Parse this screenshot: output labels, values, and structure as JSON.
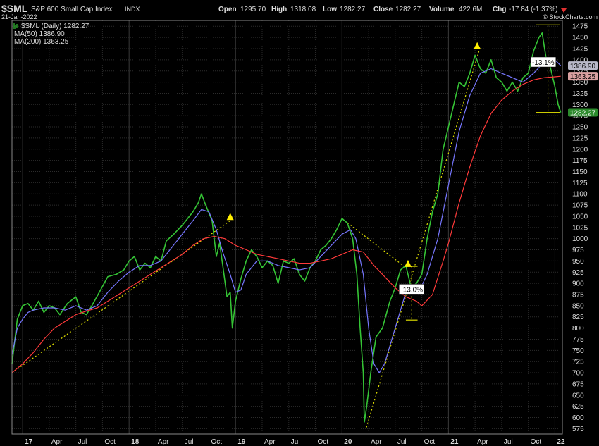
{
  "header": {
    "symbol": "$SML",
    "name": "S&P 600 Small Cap Index",
    "exchange": "INDX",
    "date": "21-Jan-2022",
    "open_label": "Open",
    "open": "1295.70",
    "high_label": "High",
    "high": "1318.08",
    "low_label": "Low",
    "low": "1282.27",
    "close_label": "Close",
    "close": "1282.27",
    "volume_label": "Volume",
    "volume": "422.6M",
    "chg_label": "Chg",
    "chg": "-17.84 (-1.37%)",
    "watermark": "© StockCharts.com"
  },
  "legend": [
    {
      "label": "$SML (Daily) 1282.27",
      "color": "#35c435"
    },
    {
      "label": "MA(50) 1386.90",
      "color": "#7777ff"
    },
    {
      "label": "MA(200) 1363.25",
      "color": "#ff3a3a"
    }
  ],
  "price_tags": [
    {
      "label": "1386.90",
      "value": 1386.9,
      "bg": "#b8b8c8",
      "fg": "#000000"
    },
    {
      "label": "1363.25",
      "value": 1363.25,
      "bg": "#d8a0a0",
      "fg": "#000000"
    },
    {
      "label": "1282.27",
      "value": 1282.27,
      "bg": "#2c8a2c",
      "fg": "#ffffff"
    }
  ],
  "annotations": [
    {
      "label": "-13.0%",
      "x": 2020.655,
      "y": 887
    },
    {
      "label": "-13.1%",
      "x": 2021.89,
      "y": 1395
    }
  ],
  "chart_data": {
    "type": "line",
    "title": "S&P 600 Small Cap Index",
    "xlim": [
      2016.9,
      2022.07
    ],
    "ylim": [
      563,
      1488
    ],
    "y_ticks": [
      575,
      600,
      625,
      650,
      675,
      700,
      725,
      750,
      775,
      800,
      825,
      850,
      875,
      900,
      925,
      950,
      975,
      1000,
      1025,
      1050,
      1075,
      1100,
      1125,
      1150,
      1175,
      1200,
      1225,
      1250,
      1275,
      1300,
      1325,
      1350,
      1375,
      1400,
      1425,
      1450,
      1475
    ],
    "x_ticks": [
      {
        "label": "17",
        "x": 2017.0,
        "year": true
      },
      {
        "label": "Apr",
        "x": 2017.25
      },
      {
        "label": "Jul",
        "x": 2017.5
      },
      {
        "label": "Oct",
        "x": 2017.75
      },
      {
        "label": "18",
        "x": 2018.0,
        "year": true
      },
      {
        "label": "Apr",
        "x": 2018.25
      },
      {
        "label": "Jul",
        "x": 2018.5
      },
      {
        "label": "Oct",
        "x": 2018.75
      },
      {
        "label": "19",
        "x": 2019.0,
        "year": true
      },
      {
        "label": "Apr",
        "x": 2019.25
      },
      {
        "label": "Jul",
        "x": 2019.5
      },
      {
        "label": "Oct",
        "x": 2019.75
      },
      {
        "label": "20",
        "x": 2020.0,
        "year": true
      },
      {
        "label": "Apr",
        "x": 2020.25
      },
      {
        "label": "Jul",
        "x": 2020.5
      },
      {
        "label": "Oct",
        "x": 2020.75
      },
      {
        "label": "21",
        "x": 2021.0,
        "year": true
      },
      {
        "label": "Apr",
        "x": 2021.25
      },
      {
        "label": "Jul",
        "x": 2021.5
      },
      {
        "label": "Oct",
        "x": 2021.75
      },
      {
        "label": "22",
        "x": 2022.0,
        "year": true
      }
    ],
    "grid": true,
    "legend_position": "top-left",
    "series": [
      {
        "name": "$SML (Daily)",
        "color": "#35c435",
        "width": 1.6,
        "points": [
          [
            2016.9,
            720
          ],
          [
            2016.95,
            820
          ],
          [
            2017.0,
            850
          ],
          [
            2017.05,
            855
          ],
          [
            2017.1,
            840
          ],
          [
            2017.15,
            860
          ],
          [
            2017.2,
            835
          ],
          [
            2017.25,
            850
          ],
          [
            2017.3,
            845
          ],
          [
            2017.35,
            830
          ],
          [
            2017.42,
            855
          ],
          [
            2017.5,
            870
          ],
          [
            2017.55,
            835
          ],
          [
            2017.6,
            830
          ],
          [
            2017.65,
            850
          ],
          [
            2017.72,
            880
          ],
          [
            2017.8,
            915
          ],
          [
            2017.88,
            920
          ],
          [
            2017.95,
            930
          ],
          [
            2018.0,
            950
          ],
          [
            2018.05,
            960
          ],
          [
            2018.1,
            930
          ],
          [
            2018.15,
            945
          ],
          [
            2018.2,
            935
          ],
          [
            2018.25,
            960
          ],
          [
            2018.3,
            950
          ],
          [
            2018.35,
            995
          ],
          [
            2018.42,
            1010
          ],
          [
            2018.5,
            1030
          ],
          [
            2018.55,
            1045
          ],
          [
            2018.6,
            1060
          ],
          [
            2018.65,
            1080
          ],
          [
            2018.68,
            1100
          ],
          [
            2018.72,
            1075
          ],
          [
            2018.78,
            1040
          ],
          [
            2018.82,
            960
          ],
          [
            2018.85,
            990
          ],
          [
            2018.88,
            940
          ],
          [
            2018.92,
            870
          ],
          [
            2018.95,
            880
          ],
          [
            2018.97,
            800
          ],
          [
            2019.0,
            860
          ],
          [
            2019.05,
            910
          ],
          [
            2019.1,
            950
          ],
          [
            2019.15,
            975
          ],
          [
            2019.2,
            960
          ],
          [
            2019.25,
            935
          ],
          [
            2019.3,
            950
          ],
          [
            2019.35,
            940
          ],
          [
            2019.4,
            900
          ],
          [
            2019.45,
            950
          ],
          [
            2019.5,
            945
          ],
          [
            2019.55,
            955
          ],
          [
            2019.6,
            920
          ],
          [
            2019.65,
            905
          ],
          [
            2019.7,
            935
          ],
          [
            2019.75,
            950
          ],
          [
            2019.8,
            975
          ],
          [
            2019.85,
            985
          ],
          [
            2019.9,
            1000
          ],
          [
            2019.95,
            1020
          ],
          [
            2020.0,
            1045
          ],
          [
            2020.05,
            1035
          ],
          [
            2020.1,
            1000
          ],
          [
            2020.14,
            920
          ],
          [
            2020.17,
            800
          ],
          [
            2020.2,
            700
          ],
          [
            2020.21,
            590
          ],
          [
            2020.23,
            620
          ],
          [
            2020.27,
            700
          ],
          [
            2020.32,
            780
          ],
          [
            2020.38,
            800
          ],
          [
            2020.45,
            860
          ],
          [
            2020.5,
            890
          ],
          [
            2020.55,
            930
          ],
          [
            2020.6,
            940
          ],
          [
            2020.65,
            890
          ],
          [
            2020.7,
            900
          ],
          [
            2020.75,
            920
          ],
          [
            2020.8,
            1000
          ],
          [
            2020.85,
            1060
          ],
          [
            2020.9,
            1100
          ],
          [
            2020.95,
            1200
          ],
          [
            2021.0,
            1250
          ],
          [
            2021.05,
            1300
          ],
          [
            2021.1,
            1350
          ],
          [
            2021.15,
            1340
          ],
          [
            2021.2,
            1370
          ],
          [
            2021.25,
            1410
          ],
          [
            2021.3,
            1380
          ],
          [
            2021.35,
            1370
          ],
          [
            2021.4,
            1400
          ],
          [
            2021.45,
            1360
          ],
          [
            2021.5,
            1350
          ],
          [
            2021.55,
            1330
          ],
          [
            2021.6,
            1350
          ],
          [
            2021.65,
            1330
          ],
          [
            2021.7,
            1360
          ],
          [
            2021.75,
            1370
          ],
          [
            2021.8,
            1420
          ],
          [
            2021.85,
            1450
          ],
          [
            2021.88,
            1460
          ],
          [
            2021.92,
            1400
          ],
          [
            2021.95,
            1390
          ],
          [
            2022.0,
            1340
          ],
          [
            2022.03,
            1300
          ],
          [
            2022.055,
            1282.27
          ]
        ]
      },
      {
        "name": "MA(50)",
        "color": "#7777ff",
        "width": 1.2,
        "points": [
          [
            2016.9,
            740
          ],
          [
            2016.95,
            800
          ],
          [
            2017.0,
            820
          ],
          [
            2017.05,
            835
          ],
          [
            2017.1,
            840
          ],
          [
            2017.2,
            845
          ],
          [
            2017.3,
            845
          ],
          [
            2017.4,
            840
          ],
          [
            2017.5,
            850
          ],
          [
            2017.6,
            840
          ],
          [
            2017.7,
            850
          ],
          [
            2017.8,
            880
          ],
          [
            2017.9,
            905
          ],
          [
            2018.0,
            925
          ],
          [
            2018.1,
            940
          ],
          [
            2018.2,
            940
          ],
          [
            2018.3,
            950
          ],
          [
            2018.4,
            980
          ],
          [
            2018.5,
            1010
          ],
          [
            2018.6,
            1040
          ],
          [
            2018.68,
            1065
          ],
          [
            2018.75,
            1060
          ],
          [
            2018.82,
            1020
          ],
          [
            2018.88,
            970
          ],
          [
            2018.95,
            920
          ],
          [
            2019.0,
            880
          ],
          [
            2019.05,
            885
          ],
          [
            2019.1,
            920
          ],
          [
            2019.2,
            950
          ],
          [
            2019.3,
            950
          ],
          [
            2019.4,
            940
          ],
          [
            2019.5,
            935
          ],
          [
            2019.6,
            930
          ],
          [
            2019.7,
            935
          ],
          [
            2019.8,
            960
          ],
          [
            2019.9,
            985
          ],
          [
            2020.0,
            1010
          ],
          [
            2020.08,
            1020
          ],
          [
            2020.13,
            1000
          ],
          [
            2020.2,
            920
          ],
          [
            2020.25,
            800
          ],
          [
            2020.3,
            720
          ],
          [
            2020.35,
            700
          ],
          [
            2020.4,
            720
          ],
          [
            2020.5,
            800
          ],
          [
            2020.6,
            880
          ],
          [
            2020.7,
            890
          ],
          [
            2020.75,
            895
          ],
          [
            2020.8,
            920
          ],
          [
            2020.9,
            1000
          ],
          [
            2021.0,
            1120
          ],
          [
            2021.1,
            1240
          ],
          [
            2021.2,
            1320
          ],
          [
            2021.3,
            1370
          ],
          [
            2021.4,
            1380
          ],
          [
            2021.5,
            1370
          ],
          [
            2021.6,
            1360
          ],
          [
            2021.7,
            1350
          ],
          [
            2021.8,
            1370
          ],
          [
            2021.9,
            1395
          ],
          [
            2022.0,
            1400
          ],
          [
            2022.055,
            1386.9
          ]
        ]
      },
      {
        "name": "MA(200)",
        "color": "#ff3a3a",
        "width": 1.2,
        "points": [
          [
            2016.9,
            700
          ],
          [
            2017.0,
            720
          ],
          [
            2017.1,
            745
          ],
          [
            2017.2,
            775
          ],
          [
            2017.3,
            800
          ],
          [
            2017.4,
            815
          ],
          [
            2017.5,
            830
          ],
          [
            2017.6,
            838
          ],
          [
            2017.7,
            845
          ],
          [
            2017.8,
            860
          ],
          [
            2017.9,
            875
          ],
          [
            2018.0,
            890
          ],
          [
            2018.1,
            905
          ],
          [
            2018.2,
            920
          ],
          [
            2018.3,
            935
          ],
          [
            2018.4,
            950
          ],
          [
            2018.5,
            965
          ],
          [
            2018.6,
            985
          ],
          [
            2018.7,
            1000
          ],
          [
            2018.8,
            1005
          ],
          [
            2018.9,
            1000
          ],
          [
            2019.0,
            985
          ],
          [
            2019.1,
            975
          ],
          [
            2019.2,
            965
          ],
          [
            2019.3,
            960
          ],
          [
            2019.4,
            955
          ],
          [
            2019.5,
            950
          ],
          [
            2019.6,
            945
          ],
          [
            2019.7,
            945
          ],
          [
            2019.8,
            950
          ],
          [
            2019.9,
            955
          ],
          [
            2020.0,
            965
          ],
          [
            2020.1,
            975
          ],
          [
            2020.2,
            970
          ],
          [
            2020.3,
            940
          ],
          [
            2020.4,
            915
          ],
          [
            2020.5,
            890
          ],
          [
            2020.6,
            870
          ],
          [
            2020.7,
            860
          ],
          [
            2020.75,
            850
          ],
          [
            2020.85,
            875
          ],
          [
            2020.95,
            950
          ],
          [
            2021.0,
            990
          ],
          [
            2021.1,
            1080
          ],
          [
            2021.2,
            1160
          ],
          [
            2021.3,
            1230
          ],
          [
            2021.4,
            1280
          ],
          [
            2021.5,
            1310
          ],
          [
            2021.6,
            1330
          ],
          [
            2021.7,
            1345
          ],
          [
            2021.8,
            1355
          ],
          [
            2021.9,
            1360
          ],
          [
            2022.0,
            1362
          ],
          [
            2022.055,
            1363.25
          ]
        ]
      }
    ],
    "trendlines": [
      [
        [
          2016.9,
          700
        ],
        [
          2018.95,
          1040
        ]
      ],
      [
        [
          2020.0,
          1045
        ],
        [
          2020.6,
          935
        ]
      ],
      [
        [
          2020.23,
          578
        ],
        [
          2021.3,
          1430
        ]
      ]
    ],
    "range_brackets": [
      {
        "x1": 2020.6,
        "x2": 2020.71,
        "high": 938,
        "low": 818,
        "mark_x": 2020.655
      },
      {
        "x1": 2021.82,
        "x2": 2022.05,
        "high": 1478,
        "low": 1282,
        "mark_x": 2021.935
      }
    ],
    "arrows": [
      {
        "x": 2018.95,
        "y": 1048,
        "dir": "up"
      },
      {
        "x": 2020.62,
        "y": 943,
        "dir": "up"
      },
      {
        "x": 2020.73,
        "y": 885,
        "dir": "up"
      },
      {
        "x": 2021.27,
        "y": 1430,
        "dir": "up"
      }
    ]
  }
}
